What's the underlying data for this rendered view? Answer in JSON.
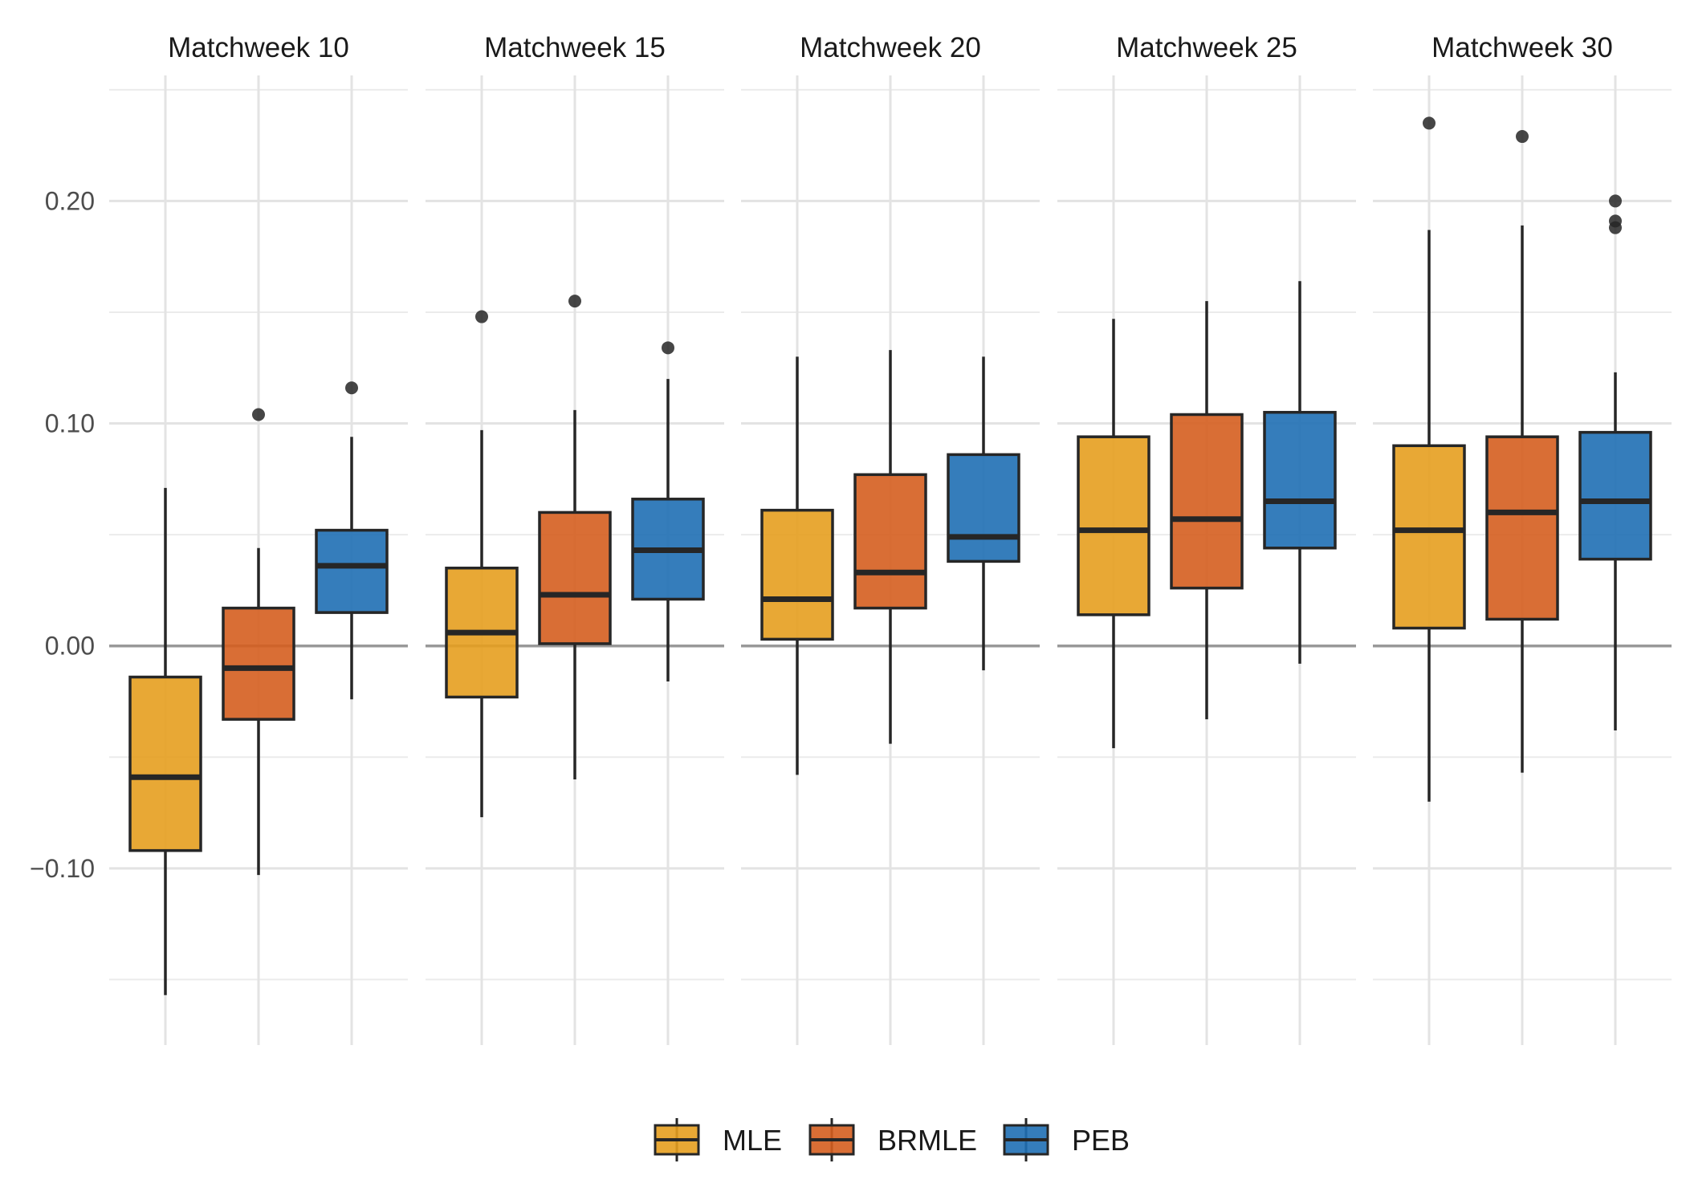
{
  "chart_data": {
    "type": "boxplot",
    "facets": [
      "Matchweek 10",
      "Matchweek 15",
      "Matchweek 20",
      "Matchweek 25",
      "Matchweek 30"
    ],
    "series": [
      {
        "name": "MLE",
        "color": "#E69F1F"
      },
      {
        "name": "BRMLE",
        "color": "#D55E1F"
      },
      {
        "name": "PEB",
        "color": "#1F6FB4"
      }
    ],
    "y_ticks": [
      {
        "value": 0.2,
        "label": "0.20"
      },
      {
        "value": 0.1,
        "label": "0.10"
      },
      {
        "value": 0.0,
        "label": "0.00"
      },
      {
        "value": -0.1,
        "label": "−0.10"
      }
    ],
    "ylim": [
      -0.178,
      0.255
    ],
    "reference_line": 0.0,
    "grid": true,
    "legend_position": "bottom",
    "boxes": [
      [
        {
          "min": -0.157,
          "q1": -0.092,
          "median": -0.059,
          "q3": -0.014,
          "max": 0.071,
          "outliers": []
        },
        {
          "min": -0.103,
          "q1": -0.033,
          "median": -0.01,
          "q3": 0.017,
          "max": 0.044,
          "outliers": [
            0.104
          ]
        },
        {
          "min": -0.024,
          "q1": 0.015,
          "median": 0.036,
          "q3": 0.052,
          "max": 0.094,
          "outliers": [
            0.116
          ]
        }
      ],
      [
        {
          "min": -0.077,
          "q1": -0.023,
          "median": 0.006,
          "q3": 0.035,
          "max": 0.097,
          "outliers": [
            0.148
          ]
        },
        {
          "min": -0.06,
          "q1": 0.001,
          "median": 0.023,
          "q3": 0.06,
          "max": 0.106,
          "outliers": [
            0.155
          ]
        },
        {
          "min": -0.016,
          "q1": 0.021,
          "median": 0.043,
          "q3": 0.066,
          "max": 0.12,
          "outliers": [
            0.134
          ]
        }
      ],
      [
        {
          "min": -0.058,
          "q1": 0.003,
          "median": 0.021,
          "q3": 0.061,
          "max": 0.13,
          "outliers": []
        },
        {
          "min": -0.044,
          "q1": 0.017,
          "median": 0.033,
          "q3": 0.077,
          "max": 0.133,
          "outliers": []
        },
        {
          "min": -0.011,
          "q1": 0.038,
          "median": 0.049,
          "q3": 0.086,
          "max": 0.13,
          "outliers": []
        }
      ],
      [
        {
          "min": -0.046,
          "q1": 0.014,
          "median": 0.052,
          "q3": 0.094,
          "max": 0.147,
          "outliers": []
        },
        {
          "min": -0.033,
          "q1": 0.026,
          "median": 0.057,
          "q3": 0.104,
          "max": 0.155,
          "outliers": []
        },
        {
          "min": -0.008,
          "q1": 0.044,
          "median": 0.065,
          "q3": 0.105,
          "max": 0.164,
          "outliers": []
        }
      ],
      [
        {
          "min": -0.07,
          "q1": 0.008,
          "median": 0.052,
          "q3": 0.09,
          "max": 0.187,
          "outliers": [
            0.235
          ]
        },
        {
          "min": -0.057,
          "q1": 0.012,
          "median": 0.06,
          "q3": 0.094,
          "max": 0.189,
          "outliers": [
            0.229
          ]
        },
        {
          "min": -0.038,
          "q1": 0.039,
          "median": 0.065,
          "q3": 0.096,
          "max": 0.123,
          "outliers": [
            0.188,
            0.191,
            0.2
          ]
        }
      ]
    ]
  }
}
